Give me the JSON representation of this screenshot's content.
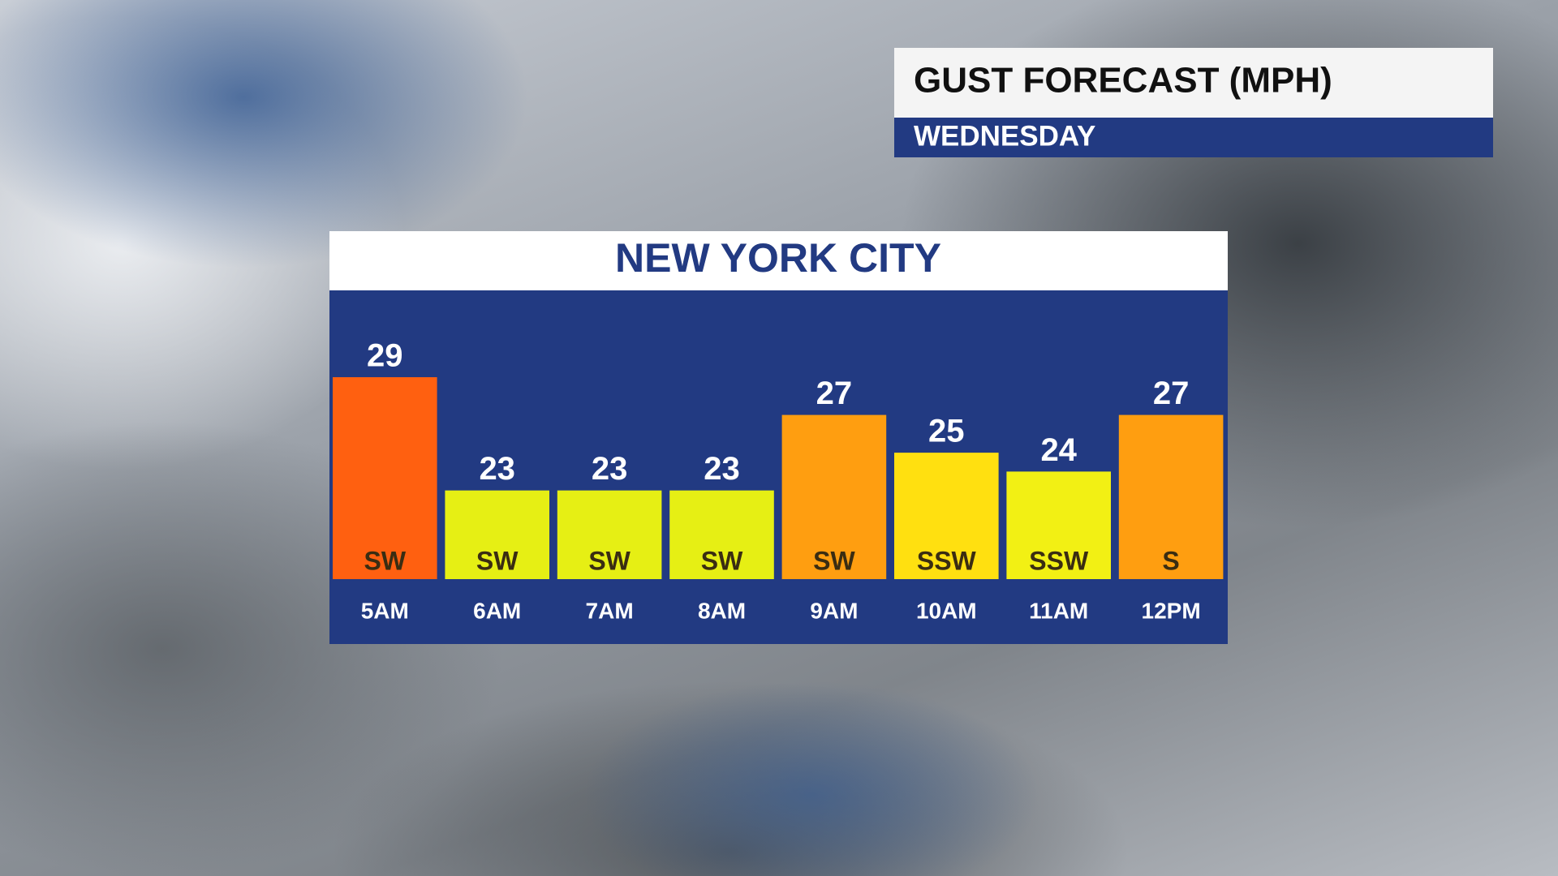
{
  "header": {
    "title": "GUST FORECAST (MPH)",
    "subtitle": "WEDNESDAY"
  },
  "chart_data": {
    "type": "bar",
    "title": "NEW YORK CITY",
    "categories": [
      "5AM",
      "6AM",
      "7AM",
      "8AM",
      "9AM",
      "10AM",
      "11AM",
      "12PM"
    ],
    "values": [
      29,
      23,
      23,
      23,
      27,
      25,
      24,
      27
    ],
    "directions": [
      "SW",
      "SW",
      "SW",
      "SW",
      "SW",
      "SSW",
      "SSW",
      "S"
    ],
    "colors": [
      "#ff6010",
      "#e6ef14",
      "#e6ef14",
      "#e6ef14",
      "#ff9e10",
      "#ffe010",
      "#f2f014",
      "#ff9e10"
    ],
    "ylim": [
      18.3,
      31
    ]
  }
}
